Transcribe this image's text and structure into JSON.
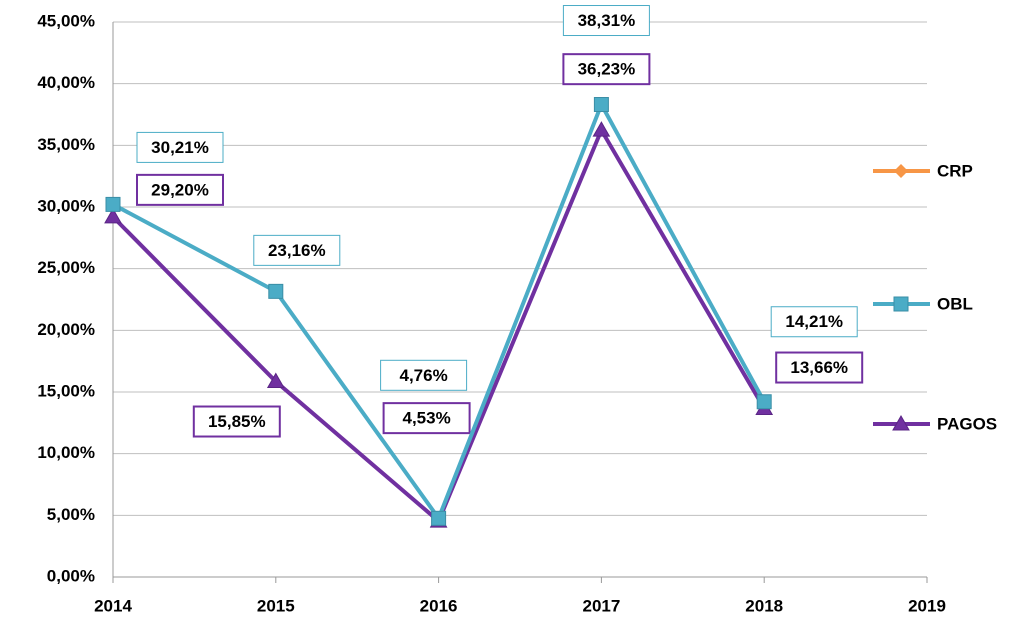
{
  "chart_data": {
    "type": "line",
    "x": [
      2014,
      2015,
      2016,
      2017,
      2018
    ],
    "xlim": [
      2014,
      2019
    ],
    "xticks": [
      2014,
      2015,
      2016,
      2017,
      2018,
      2019
    ],
    "ylim": [
      0,
      45
    ],
    "yticks": [
      {
        "value": 0,
        "label": "0,00%"
      },
      {
        "value": 5,
        "label": "5,00%"
      },
      {
        "value": 10,
        "label": "10,00%"
      },
      {
        "value": 15,
        "label": "15,00%"
      },
      {
        "value": 20,
        "label": "20,00%"
      },
      {
        "value": 25,
        "label": "25,00%"
      },
      {
        "value": 30,
        "label": "30,00%"
      },
      {
        "value": 35,
        "label": "35,00%"
      },
      {
        "value": 40,
        "label": "40,00%"
      },
      {
        "value": 45,
        "label": "45,00%"
      }
    ],
    "grid": true,
    "legend": "right",
    "series": [
      {
        "name": "CRP",
        "color": "#f79646",
        "marker": "diamond",
        "values": [
          null,
          null,
          null,
          null,
          null
        ]
      },
      {
        "name": "OBL",
        "color": "#4bacc6",
        "marker": "square",
        "values": [
          30.21,
          23.16,
          4.76,
          38.31,
          14.21
        ],
        "value_labels": [
          "30,21%",
          "23,16%",
          "4,76%",
          "38,31%",
          "14,21%"
        ]
      },
      {
        "name": "PAGOS",
        "color": "#7030a0",
        "marker": "triangle",
        "values": [
          29.2,
          15.85,
          4.53,
          36.23,
          13.66
        ],
        "value_labels": [
          "29,20%",
          "15,85%",
          "4,53%",
          "36,23%",
          "13,66%"
        ]
      }
    ]
  }
}
